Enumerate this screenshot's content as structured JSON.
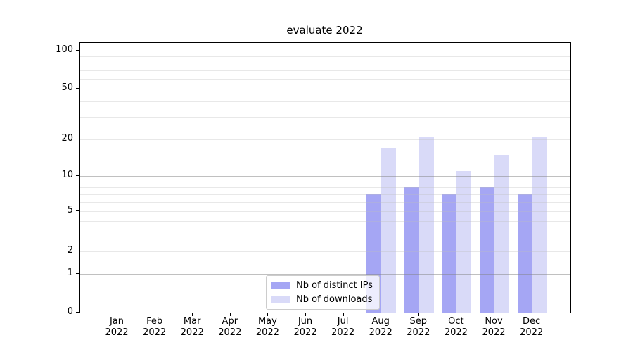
{
  "title": "evaluate 2022",
  "chart_data": {
    "type": "bar",
    "title": "evaluate 2022",
    "categories": [
      {
        "month": "Jan",
        "year": "2022"
      },
      {
        "month": "Feb",
        "year": "2022"
      },
      {
        "month": "Mar",
        "year": "2022"
      },
      {
        "month": "Apr",
        "year": "2022"
      },
      {
        "month": "May",
        "year": "2022"
      },
      {
        "month": "Jun",
        "year": "2022"
      },
      {
        "month": "Jul",
        "year": "2022"
      },
      {
        "month": "Aug",
        "year": "2022"
      },
      {
        "month": "Sep",
        "year": "2022"
      },
      {
        "month": "Oct",
        "year": "2022"
      },
      {
        "month": "Nov",
        "year": "2022"
      },
      {
        "month": "Dec",
        "year": "2022"
      }
    ],
    "series": [
      {
        "name": "Nb of distinct IPs",
        "color": "#a5a6f4",
        "values": [
          0,
          0,
          0,
          0,
          0,
          0,
          0,
          7,
          8,
          7,
          8,
          7
        ]
      },
      {
        "name": "Nb of downloads",
        "color": "#d9daf8",
        "values": [
          0,
          0,
          0,
          0,
          0,
          0,
          0,
          17,
          21,
          11,
          15,
          21
        ]
      }
    ],
    "xlabel": "",
    "ylabel": "",
    "yscale": "symlog",
    "yticks": [
      0,
      1,
      2,
      5,
      10,
      20,
      50,
      100
    ],
    "minor_grid_values": [
      2,
      3,
      4,
      5,
      6,
      7,
      8,
      9,
      20,
      30,
      40,
      50,
      60,
      70,
      80,
      90
    ],
    "major_grid_values": [
      1,
      10,
      100
    ],
    "ylim": [
      0,
      115
    ],
    "grid": true,
    "legend_position": "lower center inside axes"
  }
}
